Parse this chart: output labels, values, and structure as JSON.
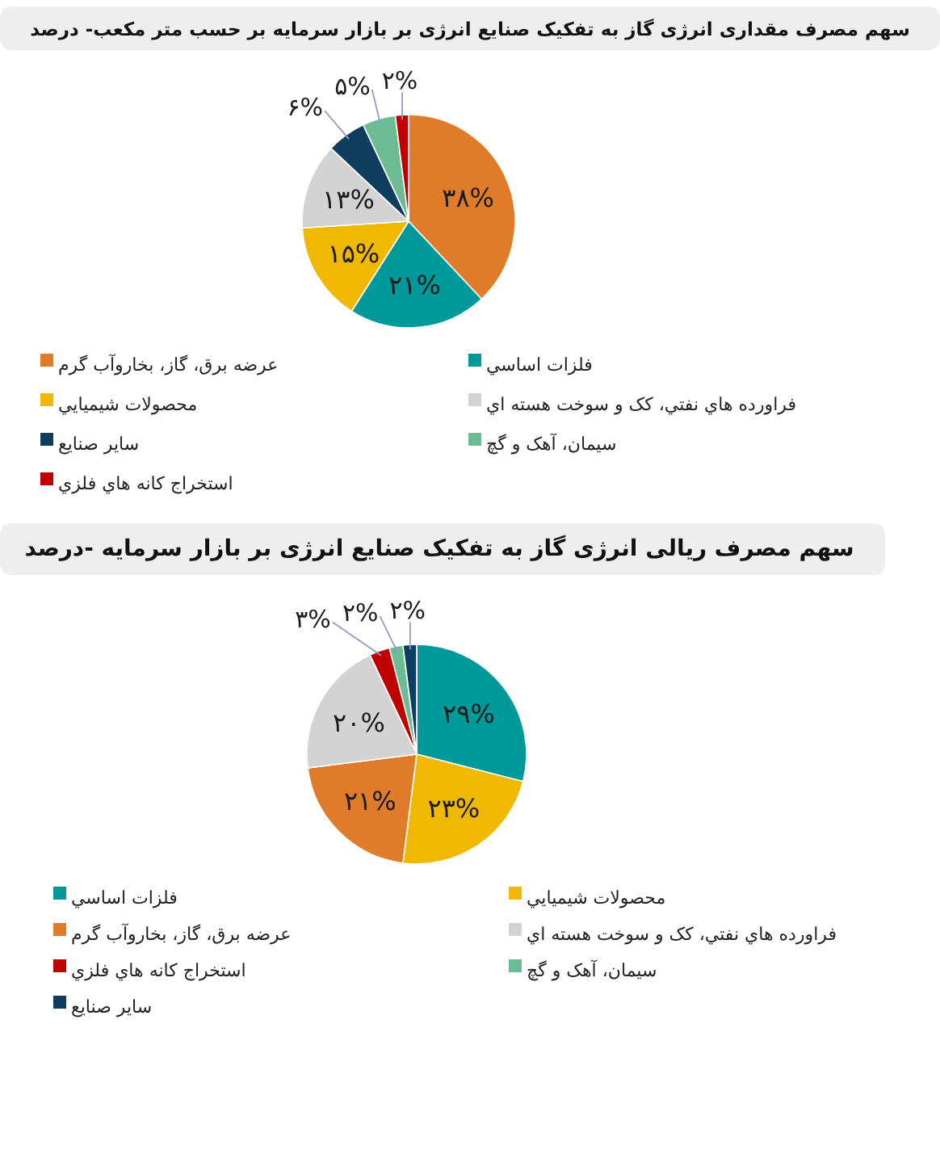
{
  "chart_data": [
    {
      "type": "pie",
      "title": "سهم مصرف مقداری انرژی گاز به تفکیک صنایع انرژی بر بازار سرمایه بر حسب متر مکعب- درصد",
      "categories": [
        "عرضه برق، گاز، بخاروآب گرم",
        "فلزات اساسي",
        "محصولات شيميايي",
        "فراورده هاي نفتي، کک و سوخت هسته اي",
        "ساير صنايع",
        "سيمان، آهک و گچ",
        "استخراج کانه هاي فلزي"
      ],
      "values": [
        38,
        21,
        15,
        13,
        6,
        5,
        2
      ],
      "colors": [
        "#e07b2a",
        "#00999a",
        "#f0b800",
        "#d3d3d3",
        "#0e3d5f",
        "#6cbb92",
        "#c00000"
      ],
      "value_labels": [
        "۳۸%",
        "۲۱%",
        "۱۵%",
        "۱۳%",
        "۶%",
        "۵%",
        "۲%"
      ],
      "legend": "bottom"
    },
    {
      "type": "pie",
      "title": "سهم مصرف ریالی انرژی گاز به تفکیک صنایع انرژی بر بازار سرمایه -درصد",
      "categories": [
        "فلزات اساسي",
        "محصولات شيميايي",
        "عرضه برق، گاز، بخاروآب گرم",
        "فراورده هاي نفتي، کک و سوخت هسته اي",
        "استخراج کانه هاي فلزي",
        "سيمان، آهک و گچ",
        "ساير صنايع"
      ],
      "values": [
        29,
        23,
        21,
        20,
        3,
        2,
        2
      ],
      "colors": [
        "#00999a",
        "#f0b800",
        "#e07b2a",
        "#d3d3d3",
        "#c00000",
        "#6cbb92",
        "#0e3d5f"
      ],
      "value_labels": [
        "۲۹%",
        "۲۳%",
        "۲۱%",
        "۲۰%",
        "۳%",
        "۲%",
        "۲%"
      ],
      "legend": "bottom"
    }
  ]
}
